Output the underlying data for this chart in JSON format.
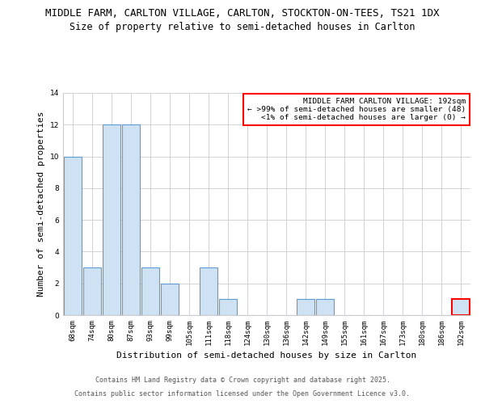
{
  "title_line1": "MIDDLE FARM, CARLTON VILLAGE, CARLTON, STOCKTON-ON-TEES, TS21 1DX",
  "title_line2": "Size of property relative to semi-detached houses in Carlton",
  "xlabel": "Distribution of semi-detached houses by size in Carlton",
  "ylabel": "Number of semi-detached properties",
  "categories": [
    "68sqm",
    "74sqm",
    "80sqm",
    "87sqm",
    "93sqm",
    "99sqm",
    "105sqm",
    "111sqm",
    "118sqm",
    "124sqm",
    "130sqm",
    "136sqm",
    "142sqm",
    "149sqm",
    "155sqm",
    "161sqm",
    "167sqm",
    "173sqm",
    "180sqm",
    "186sqm",
    "192sqm"
  ],
  "values": [
    10,
    3,
    12,
    12,
    3,
    2,
    0,
    3,
    1,
    0,
    0,
    0,
    1,
    1,
    0,
    0,
    0,
    0,
    0,
    0,
    1
  ],
  "bar_color": "#cfe2f3",
  "bar_edge_color": "#5b9bd5",
  "highlight_bar_index": 20,
  "highlight_bar_edge_color": "#ff0000",
  "annotation_box_text": "MIDDLE FARM CARLTON VILLAGE: 192sqm\n← >99% of semi-detached houses are smaller (48)\n<1% of semi-detached houses are larger (0) →",
  "annotation_box_edge_color": "#ff0000",
  "annotation_box_facecolor": "#ffffff",
  "ylim": [
    0,
    14
  ],
  "yticks": [
    0,
    2,
    4,
    6,
    8,
    10,
    12,
    14
  ],
  "footer_line1": "Contains HM Land Registry data © Crown copyright and database right 2025.",
  "footer_line2": "Contains public sector information licensed under the Open Government Licence v3.0.",
  "bg_color": "#ffffff",
  "grid_color": "#cccccc",
  "title_fontsize": 9,
  "subtitle_fontsize": 8.5,
  "axis_label_fontsize": 8,
  "tick_fontsize": 6.5,
  "annotation_fontsize": 6.8,
  "footer_fontsize": 6
}
